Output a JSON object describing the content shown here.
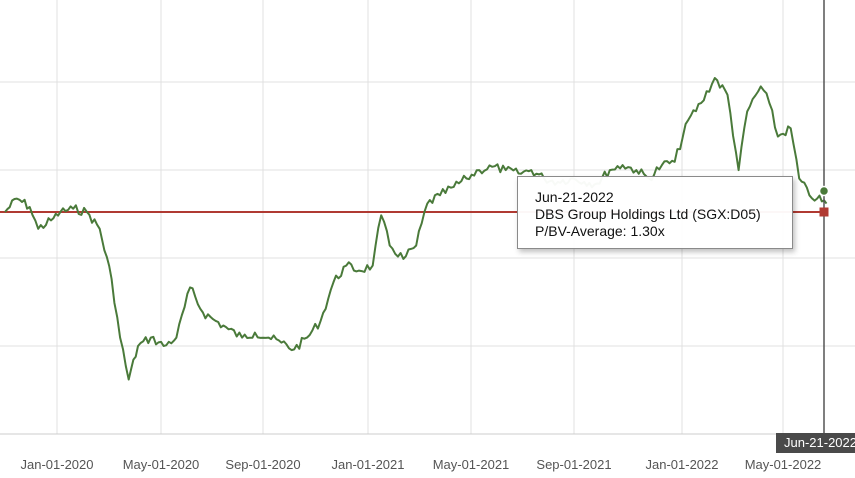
{
  "chart_data": {
    "type": "line",
    "title": "",
    "xlabel": "",
    "ylabel": "",
    "x_tick_labels": [
      "Jan-01-2020",
      "May-01-2020",
      "Sep-01-2020",
      "Jan-01-2021",
      "May-01-2021",
      "Sep-01-2021",
      "Jan-01-2022",
      "May-01-2022"
    ],
    "y_tick_labels": [],
    "grid": true,
    "series": [
      {
        "name": "DBS Group Holdings Ltd (SGX:D05)",
        "color": "#4a7a3a",
        "points": [
          [
            "2019-11-01",
            1.3
          ],
          [
            "2019-11-15",
            1.38
          ],
          [
            "2019-11-30",
            1.33
          ],
          [
            "2019-12-10",
            1.2
          ],
          [
            "2019-12-25",
            1.25
          ],
          [
            "2020-01-05",
            1.3
          ],
          [
            "2020-01-20",
            1.32
          ],
          [
            "2020-02-05",
            1.3
          ],
          [
            "2020-02-20",
            1.2
          ],
          [
            "2020-03-05",
            0.9
          ],
          [
            "2020-03-15",
            0.55
          ],
          [
            "2020-03-25",
            0.3
          ],
          [
            "2020-04-05",
            0.5
          ],
          [
            "2020-04-20",
            0.55
          ],
          [
            "2020-05-05",
            0.5
          ],
          [
            "2020-05-20",
            0.55
          ],
          [
            "2020-06-05",
            0.85
          ],
          [
            "2020-06-20",
            0.7
          ],
          [
            "2020-07-05",
            0.65
          ],
          [
            "2020-07-20",
            0.6
          ],
          [
            "2020-08-05",
            0.55
          ],
          [
            "2020-08-20",
            0.58
          ],
          [
            "2020-09-05",
            0.55
          ],
          [
            "2020-09-20",
            0.52
          ],
          [
            "2020-10-05",
            0.48
          ],
          [
            "2020-10-20",
            0.55
          ],
          [
            "2020-11-05",
            0.65
          ],
          [
            "2020-11-20",
            0.88
          ],
          [
            "2020-12-05",
            0.98
          ],
          [
            "2020-12-20",
            0.95
          ],
          [
            "2021-01-05",
            0.98
          ],
          [
            "2021-01-15",
            1.28
          ],
          [
            "2021-01-25",
            1.1
          ],
          [
            "2021-02-10",
            1.02
          ],
          [
            "2021-02-25",
            1.1
          ],
          [
            "2021-03-10",
            1.35
          ],
          [
            "2021-03-25",
            1.4
          ],
          [
            "2021-04-10",
            1.45
          ],
          [
            "2021-04-25",
            1.5
          ],
          [
            "2021-05-10",
            1.55
          ],
          [
            "2021-05-25",
            1.57
          ],
          [
            "2021-06-10",
            1.55
          ],
          [
            "2021-06-25",
            1.53
          ],
          [
            "2021-07-10",
            1.55
          ],
          [
            "2021-07-25",
            1.5
          ],
          [
            "2021-08-10",
            1.48
          ],
          [
            "2021-08-25",
            1.5
          ],
          [
            "2021-09-10",
            1.48
          ],
          [
            "2021-09-25",
            1.47
          ],
          [
            "2021-10-10",
            1.55
          ],
          [
            "2021-10-25",
            1.58
          ],
          [
            "2021-11-10",
            1.55
          ],
          [
            "2021-11-25",
            1.5
          ],
          [
            "2021-12-10",
            1.58
          ],
          [
            "2021-12-25",
            1.6
          ],
          [
            "2022-01-10",
            1.85
          ],
          [
            "2022-01-25",
            1.95
          ],
          [
            "2022-02-10",
            2.1
          ],
          [
            "2022-02-25",
            2.0
          ],
          [
            "2022-03-10",
            1.55
          ],
          [
            "2022-03-20",
            1.9
          ],
          [
            "2022-04-05",
            2.05
          ],
          [
            "2022-04-15",
            1.95
          ],
          [
            "2022-04-25",
            1.75
          ],
          [
            "2022-05-10",
            1.8
          ],
          [
            "2022-05-20",
            1.5
          ],
          [
            "2022-06-01",
            1.4
          ],
          [
            "2022-06-10",
            1.38
          ],
          [
            "2022-06-21",
            1.35
          ]
        ]
      },
      {
        "name": "P/BV-Average",
        "color": "#b03a32",
        "value": 1.3
      }
    ]
  },
  "tooltip": {
    "date": "Jun-21-2022",
    "company": "DBS Group Holdings Ltd (SGX:D05)",
    "metric": "P/BV-Average: 1.30x"
  },
  "crosshair": {
    "date_badge": "Jun-21-2022"
  }
}
